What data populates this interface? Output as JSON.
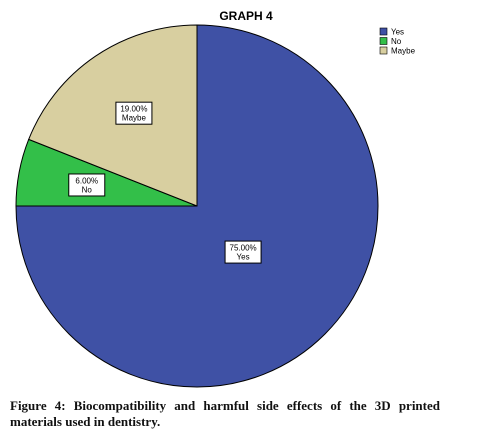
{
  "chart_data": {
    "type": "pie",
    "title": "GRAPH 4",
    "categories": [
      "Yes",
      "No",
      "Maybe"
    ],
    "values": [
      75.0,
      6.0,
      19.0
    ],
    "value_labels": [
      "75.00%",
      "6.00%",
      "19.00%"
    ],
    "colors": [
      "#3f51a5",
      "#33bf49",
      "#d8cfa0"
    ],
    "legend": {
      "placement": "top-right",
      "entries": [
        "Yes",
        "No",
        "Maybe"
      ]
    },
    "start_angle": "12 o'clock",
    "direction": "clockwise"
  },
  "caption": "Figure 4: Biocompatibility and harmful side effects of the 3D printed materials used in dentistry."
}
